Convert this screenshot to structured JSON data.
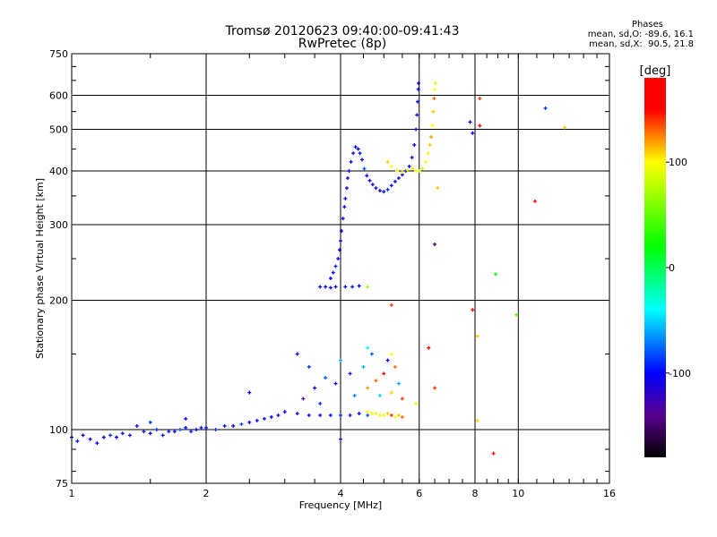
{
  "chart_data": {
    "type": "scatter",
    "title": "Tromsø 20120623 09:40:00-09:41:43",
    "subtitle": "RwPretec (8p)",
    "xlabel": "Frequency [MHz]",
    "ylabel": "Stationary phase Virtual Height [km]",
    "xscale": "log",
    "yscale": "log",
    "xlim": [
      1,
      16
    ],
    "ylim": [
      75,
      750
    ],
    "xticks": [
      1,
      2,
      4,
      6,
      8,
      10,
      16
    ],
    "xgrid": [
      2,
      4,
      6,
      8,
      10
    ],
    "yticks": [
      75,
      100,
      200,
      300,
      400,
      500,
      600,
      750
    ],
    "ygrid": [
      100,
      200,
      300,
      400,
      500,
      600
    ],
    "stats": {
      "heading": "Phases",
      "o_line": "mean, sd,O: -89.6, 16.1",
      "x_line": "mean, sd,X:  90.5, 21.8"
    },
    "colorbar": {
      "label": "[deg]",
      "range": [
        -180,
        180
      ],
      "ticks": [
        "100",
        "0",
        "-100"
      ],
      "tick_values": [
        100,
        0,
        -100
      ],
      "stops": [
        [
          -180,
          "#000000"
        ],
        [
          -140,
          "#5a0090"
        ],
        [
          -100,
          "#0000ff"
        ],
        [
          -40,
          "#00ffff"
        ],
        [
          20,
          "#00ff00"
        ],
        [
          100,
          "#ffff00"
        ],
        [
          150,
          "#ff0000"
        ],
        [
          180,
          "#ff0000"
        ]
      ]
    },
    "point_fields": [
      "frequency_MHz",
      "height_km",
      "phase_deg"
    ],
    "points": [
      [
        1.0,
        96,
        -100
      ],
      [
        1.03,
        94,
        -95
      ],
      [
        1.06,
        97,
        -105
      ],
      [
        1.1,
        95,
        -100
      ],
      [
        1.14,
        93,
        -110
      ],
      [
        1.18,
        96,
        -100
      ],
      [
        1.22,
        97,
        -90
      ],
      [
        1.26,
        96,
        -100
      ],
      [
        1.3,
        98,
        -95
      ],
      [
        1.35,
        97,
        -110
      ],
      [
        1.4,
        102,
        -100
      ],
      [
        1.45,
        99,
        -120
      ],
      [
        1.5,
        98,
        -100
      ],
      [
        1.55,
        100,
        -90
      ],
      [
        1.6,
        97,
        -100
      ],
      [
        1.65,
        99,
        -105
      ],
      [
        1.7,
        99,
        -100
      ],
      [
        1.75,
        100,
        -80
      ],
      [
        1.8,
        101,
        -100
      ],
      [
        1.85,
        99,
        -95
      ],
      [
        1.9,
        100,
        -100
      ],
      [
        1.95,
        101,
        -110
      ],
      [
        2.0,
        101,
        -100
      ],
      [
        2.1,
        100,
        -90
      ],
      [
        2.2,
        102,
        -100
      ],
      [
        2.3,
        102,
        -100
      ],
      [
        2.4,
        103,
        -85
      ],
      [
        2.5,
        104,
        -100
      ],
      [
        2.6,
        105,
        -100
      ],
      [
        2.7,
        106,
        -95
      ],
      [
        2.8,
        107,
        -100
      ],
      [
        2.9,
        108,
        -100
      ],
      [
        3.0,
        110,
        -100
      ],
      [
        3.2,
        109,
        -110
      ],
      [
        3.4,
        108,
        -100
      ],
      [
        3.6,
        108,
        -105
      ],
      [
        3.8,
        108,
        -100
      ],
      [
        4.0,
        108,
        -90
      ],
      [
        4.2,
        108,
        -100
      ],
      [
        4.4,
        109,
        -100
      ],
      [
        4.6,
        108,
        -80
      ],
      [
        4.6,
        110,
        100
      ],
      [
        4.7,
        109,
        95
      ],
      [
        4.8,
        109,
        90
      ],
      [
        4.9,
        108,
        100
      ],
      [
        5.0,
        108,
        95
      ],
      [
        5.1,
        109,
        110
      ],
      [
        5.2,
        108,
        140
      ],
      [
        5.3,
        107,
        100
      ],
      [
        5.4,
        108,
        110
      ],
      [
        5.5,
        107,
        130
      ],
      [
        3.7,
        215,
        -100
      ],
      [
        3.8,
        225,
        -100
      ],
      [
        3.85,
        232,
        -100
      ],
      [
        3.9,
        240,
        -95
      ],
      [
        3.95,
        250,
        -100
      ],
      [
        3.98,
        262,
        -100
      ],
      [
        4.0,
        275,
        -100
      ],
      [
        4.02,
        290,
        -100
      ],
      [
        4.05,
        310,
        -100
      ],
      [
        4.08,
        330,
        -100
      ],
      [
        4.1,
        345,
        -105
      ],
      [
        4.13,
        365,
        -100
      ],
      [
        4.15,
        385,
        -100
      ],
      [
        4.18,
        400,
        -100
      ],
      [
        4.22,
        420,
        -100
      ],
      [
        4.27,
        440,
        -110
      ],
      [
        4.32,
        455,
        -100
      ],
      [
        4.38,
        450,
        -100
      ],
      [
        4.42,
        440,
        -95
      ],
      [
        4.47,
        425,
        -100
      ],
      [
        4.52,
        405,
        -80
      ],
      [
        4.58,
        390,
        -100
      ],
      [
        4.65,
        380,
        -100
      ],
      [
        4.72,
        372,
        -110
      ],
      [
        4.8,
        365,
        -100
      ],
      [
        4.9,
        360,
        -100
      ],
      [
        5.0,
        358,
        -100
      ],
      [
        5.1,
        362,
        -90
      ],
      [
        5.2,
        370,
        -100
      ],
      [
        5.3,
        378,
        -100
      ],
      [
        5.4,
        385,
        -100
      ],
      [
        5.5,
        392,
        -100
      ],
      [
        5.6,
        400,
        -95
      ],
      [
        5.7,
        410,
        -100
      ],
      [
        5.78,
        430,
        -100
      ],
      [
        5.85,
        460,
        -100
      ],
      [
        5.9,
        500,
        -100
      ],
      [
        5.93,
        540,
        -100
      ],
      [
        5.95,
        580,
        -100
      ],
      [
        5.97,
        620,
        -100
      ],
      [
        5.98,
        640,
        -100
      ],
      [
        5.1,
        420,
        110
      ],
      [
        5.2,
        410,
        100
      ],
      [
        5.35,
        400,
        95
      ],
      [
        5.5,
        398,
        100
      ],
      [
        5.65,
        402,
        90
      ],
      [
        5.8,
        405,
        105
      ],
      [
        5.9,
        400,
        95
      ],
      [
        6.0,
        400,
        90
      ],
      [
        6.1,
        405,
        80
      ],
      [
        6.2,
        420,
        100
      ],
      [
        6.28,
        440,
        95
      ],
      [
        6.34,
        460,
        110
      ],
      [
        6.38,
        480,
        120
      ],
      [
        6.42,
        510,
        100
      ],
      [
        6.45,
        550,
        110
      ],
      [
        6.48,
        590,
        130
      ],
      [
        6.5,
        620,
        100
      ],
      [
        6.52,
        640,
        90
      ],
      [
        3.6,
        215,
        -100
      ],
      [
        3.8,
        214,
        -110
      ],
      [
        3.9,
        215,
        -100
      ],
      [
        4.1,
        215,
        -100
      ],
      [
        4.25,
        215,
        -95
      ],
      [
        4.4,
        216,
        -100
      ],
      [
        4.6,
        215,
        70
      ],
      [
        3.2,
        150,
        -100
      ],
      [
        3.4,
        140,
        -90
      ],
      [
        3.5,
        125,
        -110
      ],
      [
        3.7,
        132,
        -80
      ],
      [
        3.9,
        128,
        -120
      ],
      [
        4.0,
        145,
        -60
      ],
      [
        4.2,
        135,
        -100
      ],
      [
        4.3,
        120,
        -70
      ],
      [
        4.5,
        140,
        -60
      ],
      [
        4.6,
        125,
        120
      ],
      [
        4.7,
        150,
        -80
      ],
      [
        4.8,
        130,
        130
      ],
      [
        4.9,
        120,
        -50
      ],
      [
        5.0,
        135,
        150
      ],
      [
        5.1,
        145,
        -100
      ],
      [
        5.2,
        122,
        110
      ],
      [
        5.3,
        140,
        130
      ],
      [
        5.4,
        128,
        -60
      ],
      [
        5.5,
        118,
        140
      ],
      [
        5.2,
        150,
        100
      ],
      [
        4.6,
        155,
        -40
      ],
      [
        5.9,
        115,
        90
      ],
      [
        6.3,
        155,
        150
      ],
      [
        6.5,
        125,
        140
      ],
      [
        3.3,
        118,
        -130
      ],
      [
        3.6,
        115,
        -90
      ],
      [
        2.5,
        122,
        -100
      ],
      [
        1.5,
        104,
        -90
      ],
      [
        1.8,
        106,
        -100
      ],
      [
        6.5,
        270,
        -150
      ],
      [
        7.8,
        520,
        -100
      ],
      [
        7.9,
        490,
        -100
      ],
      [
        8.2,
        510,
        160
      ],
      [
        8.2,
        590,
        140
      ],
      [
        10.9,
        340,
        150
      ],
      [
        11.5,
        560,
        -90
      ],
      [
        12.7,
        505,
        110
      ],
      [
        8.1,
        105,
        110
      ],
      [
        8.9,
        230,
        20
      ],
      [
        8.1,
        165,
        110
      ],
      [
        7.9,
        190,
        160
      ],
      [
        8.8,
        88,
        150
      ],
      [
        9.9,
        185,
        50
      ],
      [
        5.2,
        195,
        140
      ],
      [
        6.6,
        365,
        110
      ],
      [
        4.0,
        95,
        -120
      ]
    ]
  }
}
